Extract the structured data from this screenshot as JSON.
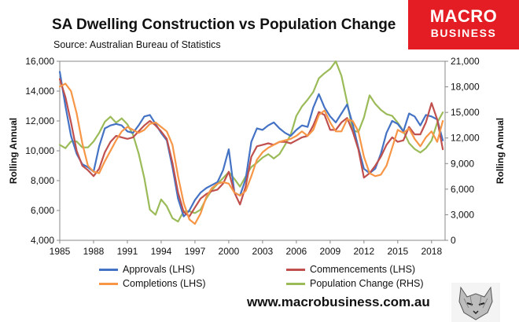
{
  "header": {
    "title": "SA Dwelling Construction vs Population Change",
    "subtitle": "Source: Australian Bureau of Statistics"
  },
  "logo": {
    "line1": "MACRO",
    "line2": "BUSINESS"
  },
  "footer": {
    "website": "www.macrobusiness.com.au"
  },
  "colors": {
    "approvals": "#4472c4",
    "commencements": "#c0504d",
    "completions": "#f79646",
    "population": "#9bbb59",
    "brand": "#e41d24"
  },
  "chart_data": {
    "type": "line",
    "title": "SA Dwelling Construction vs Population Change",
    "x_ticks": [
      "1985",
      "1988",
      "1991",
      "1994",
      "1997",
      "2000",
      "2003",
      "2006",
      "2009",
      "2012",
      "2015",
      "2018"
    ],
    "xlim": [
      1985,
      2019.2
    ],
    "y_left": {
      "label": "Rolling Annual",
      "lim": [
        4000,
        16000
      ],
      "ticks": [
        "4,000",
        "6,000",
        "8,000",
        "10,000",
        "12,000",
        "14,000",
        "16,000"
      ]
    },
    "y_right": {
      "label": "Rolling Annual",
      "lim": [
        0,
        21000
      ],
      "ticks": [
        "0",
        "3,000",
        "6,000",
        "9,000",
        "12,000",
        "15,000",
        "18,000",
        "21,000"
      ]
    },
    "legend": [
      "Approvals (LHS)",
      "Commencements (LHS)",
      "Completions (LHS)",
      "Population Change (RHS)"
    ],
    "series": [
      {
        "name": "Approvals (LHS)",
        "axis": "left",
        "x": [
          1985,
          1985.5,
          1986,
          1986.5,
          1987,
          1987.5,
          1988,
          1988.5,
          1989,
          1989.5,
          1990,
          1990.5,
          1991,
          1991.5,
          1992,
          1992.5,
          1993,
          1993.5,
          1994,
          1994.5,
          1995,
          1995.5,
          1996,
          1996.5,
          1997,
          1997.5,
          1998,
          1998.5,
          1999,
          1999.5,
          2000,
          2000.5,
          2001,
          2001.5,
          2002,
          2002.5,
          2003,
          2003.5,
          2004,
          2004.5,
          2005,
          2005.5,
          2006,
          2006.5,
          2007,
          2007.5,
          2008,
          2008.5,
          2009,
          2009.5,
          2010,
          2010.5,
          2011,
          2011.5,
          2012,
          2012.5,
          2013,
          2013.5,
          2014,
          2014.5,
          2015,
          2015.5,
          2016,
          2016.5,
          2017,
          2017.5,
          2018,
          2018.5,
          2019
        ],
        "values": [
          15300,
          13000,
          11000,
          9800,
          9100,
          8900,
          8600,
          10300,
          11500,
          11700,
          11800,
          11700,
          11300,
          11200,
          11700,
          12300,
          12400,
          11800,
          11200,
          10700,
          8900,
          6800,
          5600,
          6000,
          6700,
          7200,
          7500,
          7700,
          7900,
          8700,
          10100,
          7200,
          7000,
          8100,
          10600,
          11500,
          11400,
          11700,
          11900,
          11500,
          11200,
          11000,
          11400,
          11700,
          11600,
          12900,
          13800,
          12900,
          12300,
          11900,
          12500,
          13100,
          11800,
          10200,
          8800,
          8500,
          8800,
          9800,
          11200,
          12000,
          11800,
          11300,
          12500,
          12300,
          11700,
          12400,
          12300,
          12100,
          10700
        ]
      },
      {
        "name": "Commencements (LHS)",
        "axis": "left",
        "x": [
          1985,
          1985.5,
          1986,
          1986.5,
          1987,
          1987.5,
          1988,
          1988.5,
          1989,
          1989.5,
          1990,
          1990.5,
          1991,
          1991.5,
          1992,
          1992.5,
          1993,
          1993.5,
          1994,
          1994.5,
          1995,
          1995.5,
          1996,
          1996.5,
          1997,
          1997.5,
          1998,
          1998.5,
          1999,
          1999.5,
          2000,
          2000.5,
          2001,
          2001.5,
          2002,
          2002.5,
          2003,
          2003.5,
          2004,
          2004.5,
          2005,
          2005.5,
          2006,
          2006.5,
          2007,
          2007.5,
          2008,
          2008.5,
          2009,
          2009.5,
          2010,
          2010.5,
          2011,
          2011.5,
          2012,
          2012.5,
          2013,
          2013.5,
          2014,
          2014.5,
          2015,
          2015.5,
          2016,
          2016.5,
          2017,
          2017.5,
          2018,
          2018.5,
          2019
        ],
        "values": [
          14800,
          13600,
          11900,
          10000,
          9000,
          8700,
          8300,
          8800,
          9900,
          10600,
          11000,
          10900,
          10800,
          10900,
          11300,
          11700,
          12000,
          11700,
          11300,
          10800,
          9200,
          7200,
          5900,
          5600,
          6200,
          6800,
          7100,
          7300,
          7400,
          7800,
          8600,
          7200,
          6400,
          7600,
          9600,
          10300,
          10400,
          10500,
          10400,
          10600,
          10600,
          10500,
          10700,
          10900,
          11000,
          11700,
          12600,
          12400,
          11400,
          11400,
          11900,
          12200,
          11300,
          10100,
          8200,
          8500,
          9000,
          9600,
          10400,
          10900,
          10600,
          10700,
          11600,
          11100,
          11100,
          11900,
          13200,
          12100,
          10100
        ]
      },
      {
        "name": "Completions (LHS)",
        "axis": "left",
        "x": [
          1985,
          1985.5,
          1986,
          1986.5,
          1987,
          1987.5,
          1988,
          1988.5,
          1989,
          1989.5,
          1990,
          1990.5,
          1991,
          1991.5,
          1992,
          1992.5,
          1993,
          1993.5,
          1994,
          1994.5,
          1995,
          1995.5,
          1996,
          1996.5,
          1997,
          1997.5,
          1998,
          1998.5,
          1999,
          1999.5,
          2000,
          2000.5,
          2001,
          2001.5,
          2002,
          2002.5,
          2003,
          2003.5,
          2004,
          2004.5,
          2005,
          2005.5,
          2006,
          2006.5,
          2007,
          2007.5,
          2008,
          2008.5,
          2009,
          2009.5,
          2010,
          2010.5,
          2011,
          2011.5,
          2012,
          2012.5,
          2013,
          2013.5,
          2014,
          2014.5,
          2015,
          2015.5,
          2016,
          2016.5,
          2017,
          2017.5,
          2018,
          2018.5,
          2019
        ],
        "values": [
          14300,
          14500,
          14000,
          12500,
          10500,
          9000,
          8600,
          8500,
          9300,
          10000,
          10700,
          11300,
          11600,
          11400,
          11200,
          11400,
          11800,
          11900,
          11600,
          11300,
          10400,
          8300,
          6500,
          5400,
          5100,
          5800,
          6900,
          7500,
          7800,
          7900,
          7800,
          7200,
          7000,
          7300,
          8300,
          9400,
          9900,
          10200,
          10400,
          10600,
          10700,
          10800,
          11000,
          11300,
          11000,
          11400,
          12400,
          12700,
          11900,
          11300,
          11300,
          12100,
          12000,
          11300,
          9600,
          8500,
          8300,
          8400,
          9000,
          10200,
          11400,
          11200,
          11500,
          10800,
          10300,
          10900,
          11300,
          10600,
          12000
        ]
      },
      {
        "name": "Population Change (RHS)",
        "axis": "right",
        "x": [
          1985,
          1985.5,
          1986,
          1986.5,
          1987,
          1987.5,
          1988,
          1988.5,
          1989,
          1989.5,
          1990,
          1990.5,
          1991,
          1991.5,
          1992,
          1992.5,
          1993,
          1993.5,
          1994,
          1994.5,
          1995,
          1995.5,
          1996,
          1996.5,
          1997,
          1997.5,
          1998,
          1998.5,
          1999,
          1999.5,
          2000,
          2000.5,
          2001,
          2001.5,
          2002,
          2002.5,
          2003,
          2003.5,
          2004,
          2004.5,
          2005,
          2005.5,
          2006,
          2006.5,
          2007,
          2007.5,
          2008,
          2008.5,
          2009,
          2009.5,
          2010,
          2010.5,
          2011,
          2011.5,
          2012,
          2012.5,
          2013,
          2013.5,
          2014,
          2014.5,
          2015,
          2015.5,
          2016,
          2016.5,
          2017,
          2017.5,
          2018,
          2018.5,
          2019
        ],
        "values": [
          11200,
          10800,
          11600,
          11600,
          10900,
          10900,
          11600,
          12600,
          13900,
          14500,
          13800,
          14300,
          13600,
          12400,
          10200,
          7300,
          3600,
          3000,
          4800,
          4000,
          2600,
          2200,
          3400,
          3400,
          3200,
          3600,
          4900,
          5900,
          6600,
          7300,
          8000,
          7200,
          6300,
          7500,
          8600,
          9100,
          9700,
          10100,
          9600,
          10100,
          11200,
          12400,
          14600,
          15700,
          16500,
          17400,
          19000,
          19600,
          20100,
          21000,
          19300,
          16200,
          12900,
          12700,
          14400,
          17000,
          16000,
          15300,
          14800,
          14600,
          13800,
          12800,
          11400,
          10700,
          10300,
          10800,
          11700,
          13800,
          15000
        ]
      }
    ]
  }
}
